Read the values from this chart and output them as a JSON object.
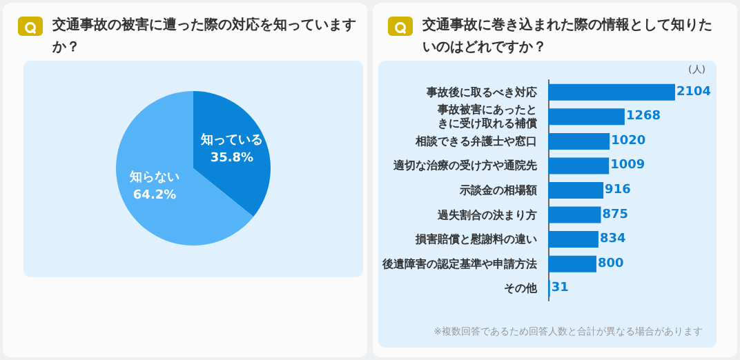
{
  "chart_data": [
    {
      "type": "pie",
      "title": "交通事故の被害に遭った際の対応を知っていますか？",
      "categories": [
        "知っている",
        "知らない"
      ],
      "values": [
        35.8,
        64.2
      ],
      "value_labels": [
        "35.8%",
        "64.2%"
      ],
      "colors": [
        "#0a84d8",
        "#55b4f8"
      ]
    },
    {
      "type": "bar",
      "orientation": "horizontal",
      "title": "交通事故に巻き込まれた際の情報として知りたいのはどれですか？",
      "xlabel": "(人)",
      "categories": [
        "事故後に取るべき対応",
        "事故被害にあったときに受け取れる補償",
        "相談できる弁護士や窓口",
        "適切な治療の受け方や通院先",
        "示談金の相場額",
        "過失割合の決まり方",
        "損害賠償と慰謝料の違い",
        "後遺障害の認定基準や申請方法",
        "その他"
      ],
      "values": [
        2104,
        1268,
        1020,
        1009,
        916,
        875,
        834,
        800,
        31
      ],
      "color": "#0a7fd6",
      "data_labels": true,
      "annotations": [
        "※複数回答であるため回答人数と合計が異なる場合があります"
      ]
    }
  ]
}
